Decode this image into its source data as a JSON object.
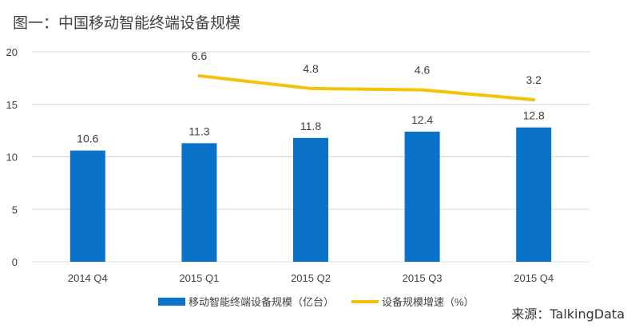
{
  "title": "图一：中国移动智能终端设备规模",
  "source": "来源：TalkingData",
  "colors": {
    "bar": "#0a72c9",
    "line": "#f5c20b",
    "grid": "#d9d9d9",
    "axis_text": "#404040"
  },
  "chart_data": {
    "type": "bar",
    "categories": [
      "2014 Q4",
      "2015 Q1",
      "2015 Q2",
      "2015 Q3",
      "2015 Q4"
    ],
    "ylim": [
      0,
      20
    ],
    "yticks": [
      0,
      5,
      10,
      15,
      20
    ],
    "grid": true,
    "legend_position": "bottom",
    "series": [
      {
        "name": "移动智能终端设备规模（亿台）",
        "type": "bar",
        "values": [
          10.6,
          11.3,
          11.8,
          12.4,
          12.8
        ]
      },
      {
        "name": "设备规模增速（%）",
        "type": "line",
        "values": [
          null,
          6.6,
          4.8,
          4.6,
          3.2
        ],
        "labels": [
          "",
          "6.6",
          "4.8",
          "4.6",
          "3.2"
        ]
      }
    ]
  }
}
